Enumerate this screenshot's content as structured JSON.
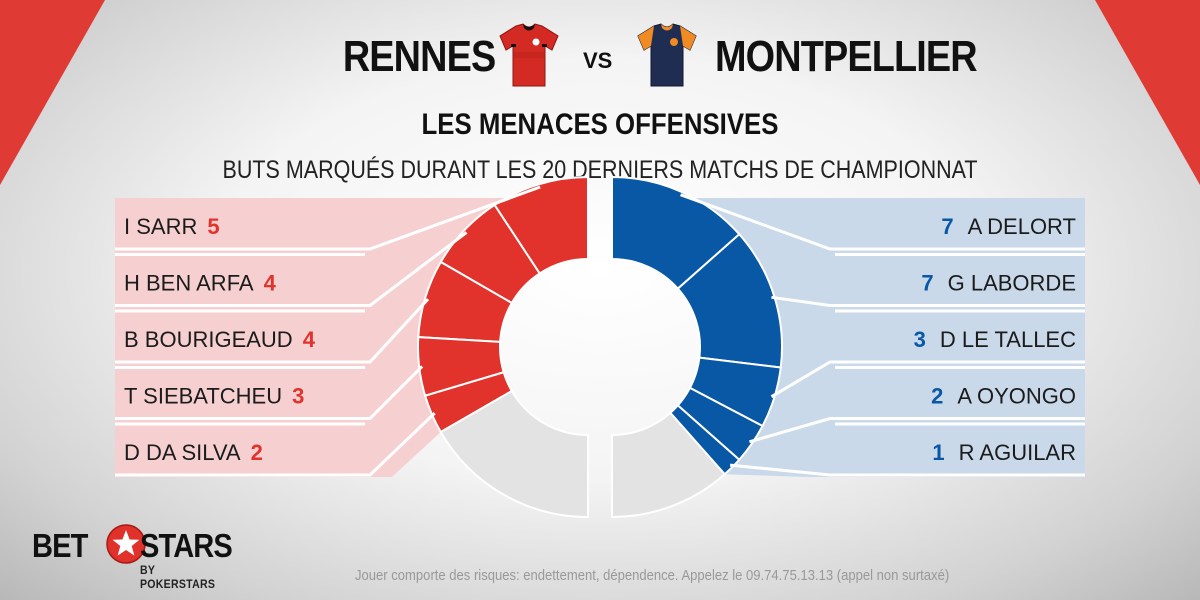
{
  "header": {
    "team_home": "RENNES",
    "vs": "VS",
    "team_away": "MONTPELLIER"
  },
  "section": {
    "title": "LES MENACES OFFENSIVES",
    "subtitle": "BUTS MARQUÉS DURANT LES 20 DERNIERS MATCHS DE CHAMPIONNAT"
  },
  "colors": {
    "home": "#e1332b",
    "away": "#0858a6",
    "home_panel": "#f6d0d0",
    "away_panel": "#c9d9ea",
    "rest": "#e3e3e3",
    "corner": "#e03a34"
  },
  "chart_data": [
    {
      "type": "pie",
      "side": "left",
      "categories": [
        "I SARR",
        "H BEN ARFA",
        "B BOURIGEAUD",
        "T SIEBATCHEU",
        "D DA SILVA"
      ],
      "values": [
        5,
        4,
        4,
        3,
        2
      ],
      "other_value": 9
    },
    {
      "type": "pie",
      "side": "right",
      "categories": [
        "A DELORT",
        "G LABORDE",
        "D LE TALLEC",
        "A OYONGO",
        "R AGUILAR"
      ],
      "values": [
        7,
        7,
        3,
        2,
        1
      ],
      "other_value": 6
    }
  ],
  "footer": {
    "logo_bet": "BET",
    "logo_stars": "STARS",
    "logo_sub": "BY POKERSTARS",
    "disclaimer": "Jouer comporte des risques: endettement, dépendence. Appelez le 09.74.75.13.13 (appel non surtaxé)"
  },
  "icons": {
    "home_jersey": "red-jersey-icon",
    "away_jersey": "navy-orange-jersey-icon",
    "logo_star": "star-icon"
  }
}
